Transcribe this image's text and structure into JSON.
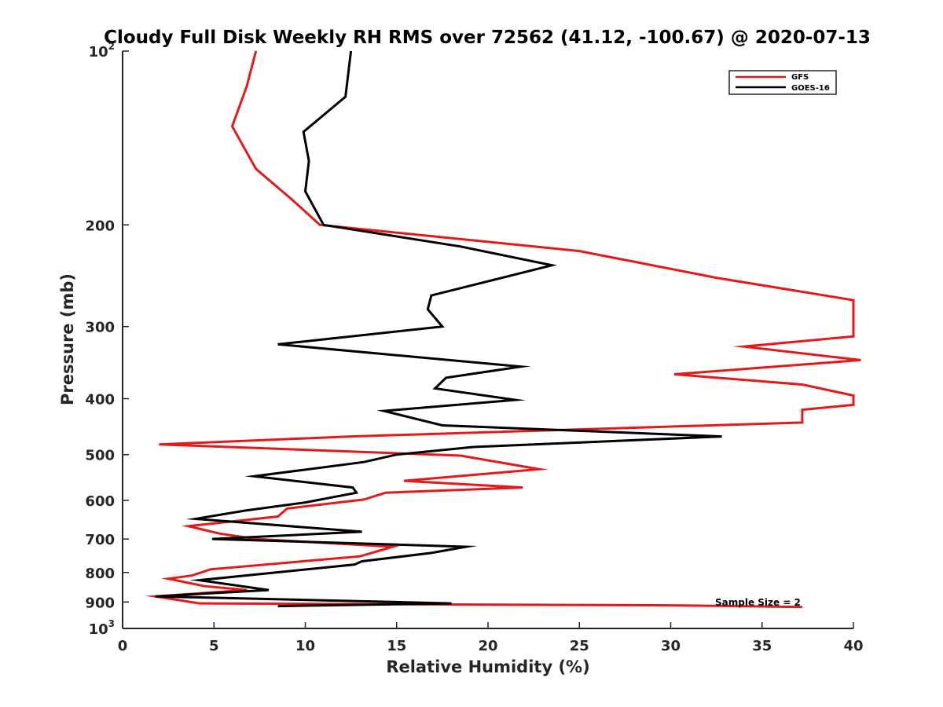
{
  "chart_data": {
    "type": "line",
    "title": "Cloudy Full Disk Weekly RH RMS over 72562 (41.12, -100.67) @ 2020-07-13",
    "xlabel": "Relative Humidity (%)",
    "ylabel": "Pressure (mb)",
    "xlim": [
      0,
      40
    ],
    "ylim": [
      100,
      1000
    ],
    "y_scale": "log",
    "y_reversed": true,
    "grid": false,
    "legend_position": "top-right",
    "x_ticks": [
      "0",
      "5",
      "10",
      "15",
      "20",
      "25",
      "30",
      "35",
      "40"
    ],
    "y_ticks": [
      {
        "value": 100,
        "base": "10",
        "exp": "2"
      },
      {
        "value": 200,
        "label": "200"
      },
      {
        "value": 300,
        "label": "300"
      },
      {
        "value": 400,
        "label": "400"
      },
      {
        "value": 500,
        "label": "500"
      },
      {
        "value": 600,
        "label": "600"
      },
      {
        "value": 700,
        "label": "700"
      },
      {
        "value": 800,
        "label": "800"
      },
      {
        "value": 900,
        "label": "900"
      },
      {
        "value": 1000,
        "base": "10",
        "exp": "3"
      }
    ],
    "annotation": "Sample Size = 2",
    "series": [
      {
        "name": "GFS",
        "color": "#e41a1a",
        "points": [
          [
            7.3,
            100
          ],
          [
            6.8,
            115
          ],
          [
            6.0,
            135
          ],
          [
            7.3,
            160
          ],
          [
            9.2,
            180
          ],
          [
            10.8,
            200
          ],
          [
            25.0,
            222
          ],
          [
            32.5,
            247
          ],
          [
            40.0,
            270
          ],
          [
            40.0,
            312
          ],
          [
            34.0,
            325
          ],
          [
            40.4,
            343
          ],
          [
            30.2,
            363
          ],
          [
            37.2,
            378
          ],
          [
            40.0,
            395
          ],
          [
            40.0,
            410
          ],
          [
            37.2,
            418
          ],
          [
            37.2,
            440
          ],
          [
            12.5,
            465
          ],
          [
            2.0,
            480
          ],
          [
            18.5,
            502
          ],
          [
            22.8,
            530
          ],
          [
            15.4,
            555
          ],
          [
            21.9,
            570
          ],
          [
            14.4,
            582
          ],
          [
            13.2,
            598
          ],
          [
            9.0,
            620
          ],
          [
            8.5,
            640
          ],
          [
            3.6,
            665
          ],
          [
            5.3,
            685
          ],
          [
            7.3,
            700
          ],
          [
            14.8,
            722
          ],
          [
            13.0,
            750
          ],
          [
            4.8,
            790
          ],
          [
            3.8,
            810
          ],
          [
            2.5,
            820
          ],
          [
            4.5,
            845
          ],
          [
            6.8,
            858
          ],
          [
            1.8,
            880
          ],
          [
            4.2,
            905
          ],
          [
            30.0,
            912
          ],
          [
            37.2,
            918
          ]
        ]
      },
      {
        "name": "GOES-16",
        "color": "#000000",
        "points": [
          [
            12.5,
            100
          ],
          [
            12.2,
            120
          ],
          [
            9.9,
            138
          ],
          [
            10.2,
            155
          ],
          [
            10.0,
            175
          ],
          [
            11.0,
            200
          ],
          [
            18.5,
            218
          ],
          [
            23.5,
            235
          ],
          [
            16.9,
            265
          ],
          [
            16.7,
            280
          ],
          [
            17.5,
            300
          ],
          [
            8.5,
            322
          ],
          [
            21.8,
            352
          ],
          [
            17.7,
            368
          ],
          [
            17.1,
            384
          ],
          [
            21.5,
            402
          ],
          [
            14.3,
            420
          ],
          [
            17.5,
            445
          ],
          [
            32.8,
            465
          ],
          [
            19.2,
            485
          ],
          [
            15.0,
            500
          ],
          [
            13.2,
            515
          ],
          [
            7.2,
            545
          ],
          [
            12.6,
            570
          ],
          [
            12.8,
            582
          ],
          [
            10.0,
            605
          ],
          [
            6.7,
            625
          ],
          [
            4.0,
            646
          ],
          [
            13.1,
            680
          ],
          [
            4.9,
            700
          ],
          [
            18.8,
            722
          ],
          [
            16.9,
            740
          ],
          [
            13.1,
            765
          ],
          [
            12.7,
            775
          ],
          [
            4.2,
            825
          ],
          [
            8.0,
            858
          ],
          [
            1.8,
            880
          ],
          [
            18.0,
            905
          ],
          [
            8.5,
            915
          ]
        ]
      }
    ]
  }
}
